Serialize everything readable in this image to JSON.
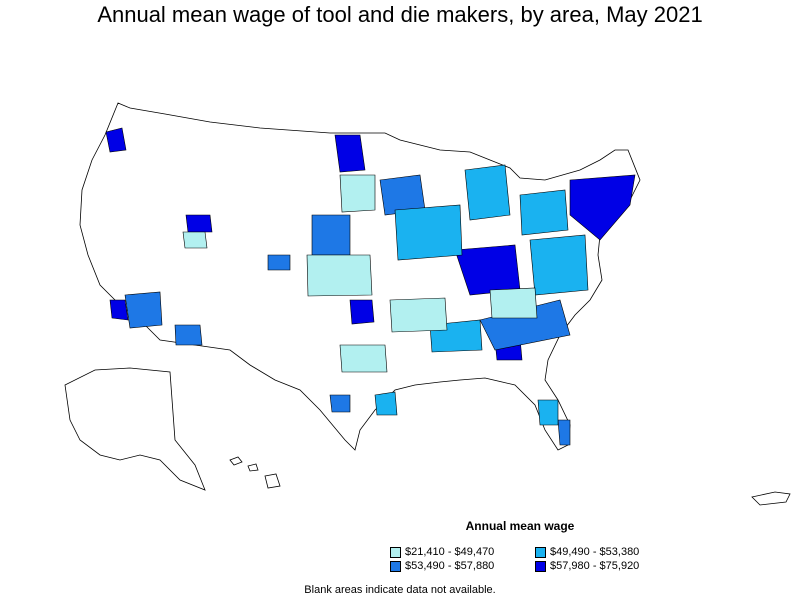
{
  "title": "Annual mean wage of tool and die makers, by area, May 2021",
  "legend": {
    "title": "Annual mean wage",
    "items": [
      {
        "label": "$21,410 - $49,470",
        "color": "#b2f0f0"
      },
      {
        "label": "$49,490 - $53,380",
        "color": "#1ab2f0"
      },
      {
        "label": "$53,490 - $57,880",
        "color": "#1e78e6"
      },
      {
        "label": "$57,980 - $75,920",
        "color": "#0000e6"
      }
    ]
  },
  "footnote": "Blank areas indicate data not available."
}
